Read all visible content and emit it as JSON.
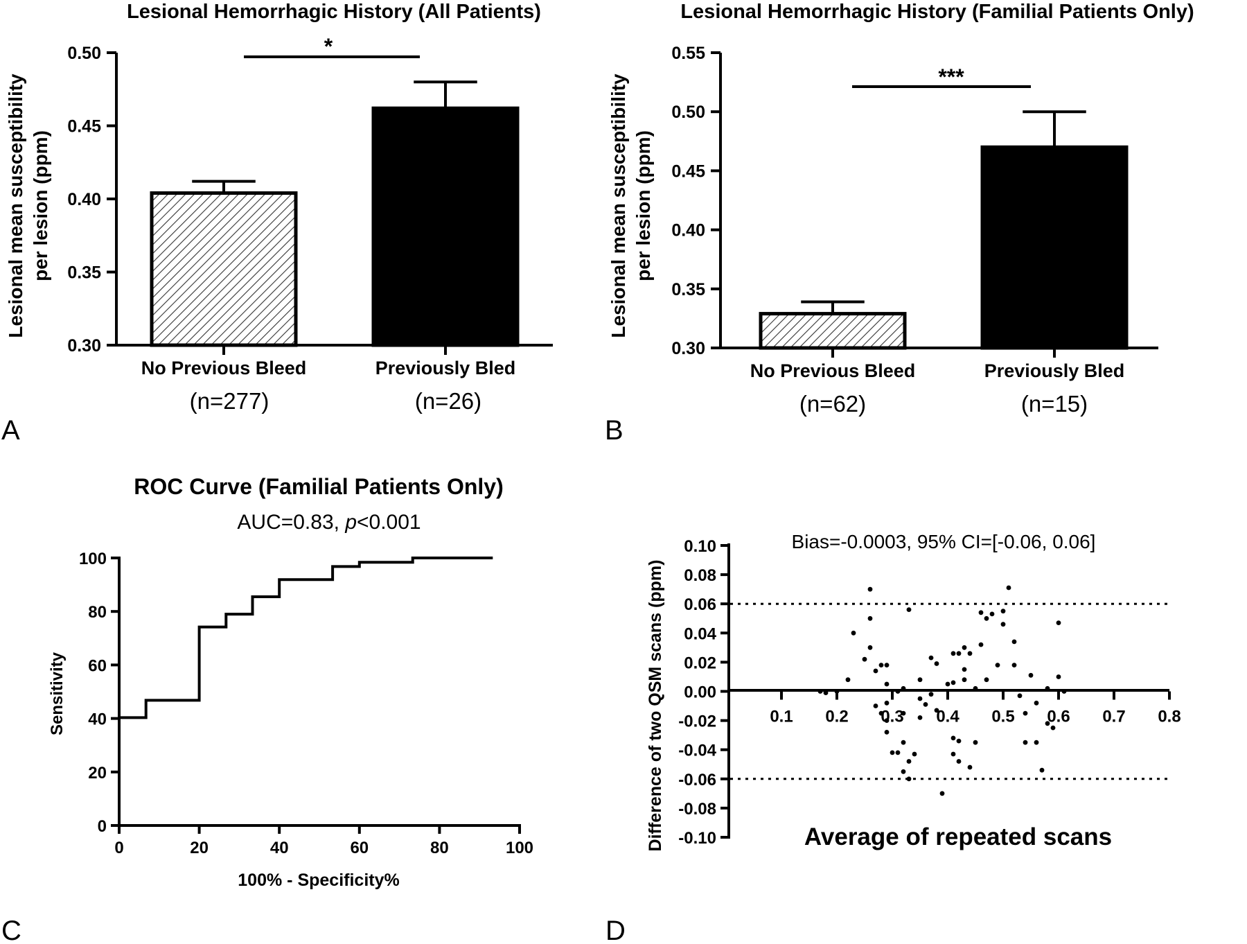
{
  "chart_data": [
    {
      "panel": "A",
      "type": "bar",
      "title": "Lesional Hemorrhagic History (All Patients)",
      "ylabel": [
        "Lesional mean susceptibility",
        "per lesion (ppm)"
      ],
      "categories": [
        "No Previous Bleed",
        "Previously Bled"
      ],
      "sublabels": [
        "(n=277)",
        "(n=26)"
      ],
      "values": [
        0.404,
        0.462
      ],
      "errors": [
        0.008,
        0.018
      ],
      "fills": [
        "hatched",
        "black"
      ],
      "ylim": [
        0.3,
        0.5
      ],
      "yticks": [
        "0.30",
        "0.35",
        "0.40",
        "0.45",
        "0.50"
      ],
      "significance": "*"
    },
    {
      "panel": "B",
      "type": "bar",
      "title": "Lesional Hemorrhagic History (Familial Patients Only)",
      "ylabel": [
        "Lesional mean susceptibility",
        "per lesion (ppm)"
      ],
      "categories": [
        "No Previous Bleed",
        "Previously Bled"
      ],
      "sublabels": [
        "(n=62)",
        "(n=15)"
      ],
      "values": [
        0.329,
        0.47
      ],
      "errors": [
        0.01,
        0.03
      ],
      "fills": [
        "hatched",
        "black"
      ],
      "ylim": [
        0.3,
        0.55
      ],
      "yticks": [
        "0.30",
        "0.35",
        "0.40",
        "0.45",
        "0.50",
        "0.55"
      ],
      "significance": "***"
    },
    {
      "panel": "C",
      "type": "line",
      "title": "ROC Curve (Familial Patients Only)",
      "subtitle_prefix": "AUC=0.83, ",
      "subtitle_italic": "p",
      "subtitle_suffix": "<0.001",
      "xlabel": "100% - Specificity%",
      "ylabel": "Sensitivity",
      "xlim": [
        0,
        100
      ],
      "ylim": [
        0,
        100
      ],
      "xticks": [
        "0",
        "20",
        "40",
        "60",
        "80",
        "100"
      ],
      "yticks": [
        "0",
        "20",
        "40",
        "60",
        "80",
        "100"
      ],
      "x": [
        0,
        0,
        6.7,
        6.7,
        20,
        20,
        26.7,
        26.7,
        33.3,
        33.3,
        40,
        40,
        53.3,
        53.3,
        60,
        60,
        73.3,
        73.3,
        93.3
      ],
      "y": [
        0,
        40.3,
        40.3,
        46.8,
        46.8,
        74.2,
        74.2,
        79,
        79,
        85.5,
        85.5,
        91.9,
        91.9,
        96.8,
        96.8,
        98.4,
        98.4,
        100,
        100
      ]
    },
    {
      "panel": "D",
      "type": "scatter",
      "title": "Bias=-0.0003, 95% CI=[-0.06, 0.06]",
      "xlabel": "Average of repeated scans",
      "ylabel": "Difference of two QSM scans (ppm)",
      "xlim": [
        0,
        0.8
      ],
      "ylim": [
        -0.1,
        0.1
      ],
      "xticks": [
        "0.1",
        "0.2",
        "0.3",
        "0.4",
        "0.5",
        "0.6",
        "0.7",
        "0.8"
      ],
      "yticks": [
        "0.10",
        "0.08",
        "0.06",
        "0.04",
        "0.02",
        "0.00",
        "-0.02",
        "-0.04",
        "-0.06",
        "-0.08",
        "-0.10"
      ],
      "limits": [
        0.06,
        -0.06
      ],
      "points": [
        [
          0.17,
          0.0
        ],
        [
          0.18,
          -0.001
        ],
        [
          0.2,
          0.0
        ],
        [
          0.22,
          0.008
        ],
        [
          0.23,
          0.04
        ],
        [
          0.25,
          0.022
        ],
        [
          0.26,
          0.07
        ],
        [
          0.26,
          0.05
        ],
        [
          0.26,
          0.03
        ],
        [
          0.27,
          0.014
        ],
        [
          0.27,
          -0.01
        ],
        [
          0.28,
          0.018
        ],
        [
          0.28,
          -0.015
        ],
        [
          0.29,
          0.018
        ],
        [
          0.29,
          0.005
        ],
        [
          0.29,
          -0.008
        ],
        [
          0.29,
          -0.02
        ],
        [
          0.29,
          -0.028
        ],
        [
          0.3,
          -0.042
        ],
        [
          0.31,
          -0.042
        ],
        [
          0.31,
          0.0
        ],
        [
          0.32,
          0.002
        ],
        [
          0.32,
          -0.015
        ],
        [
          0.32,
          -0.035
        ],
        [
          0.32,
          -0.055
        ],
        [
          0.33,
          0.056
        ],
        [
          0.33,
          -0.048
        ],
        [
          0.33,
          -0.06
        ],
        [
          0.34,
          -0.043
        ],
        [
          0.35,
          0.008
        ],
        [
          0.35,
          -0.005
        ],
        [
          0.35,
          -0.018
        ],
        [
          0.36,
          -0.009
        ],
        [
          0.37,
          0.023
        ],
        [
          0.37,
          -0.002
        ],
        [
          0.38,
          0.019
        ],
        [
          0.38,
          -0.013
        ],
        [
          0.39,
          -0.07
        ],
        [
          0.4,
          0.005
        ],
        [
          0.41,
          0.026
        ],
        [
          0.41,
          0.006
        ],
        [
          0.41,
          -0.032
        ],
        [
          0.41,
          -0.043
        ],
        [
          0.42,
          0.026
        ],
        [
          0.42,
          -0.034
        ],
        [
          0.42,
          -0.048
        ],
        [
          0.43,
          0.03
        ],
        [
          0.43,
          0.008
        ],
        [
          0.43,
          0.015
        ],
        [
          0.44,
          0.026
        ],
        [
          0.44,
          -0.052
        ],
        [
          0.45,
          0.002
        ],
        [
          0.45,
          -0.035
        ],
        [
          0.46,
          0.054
        ],
        [
          0.46,
          0.032
        ],
        [
          0.47,
          0.008
        ],
        [
          0.47,
          0.05
        ],
        [
          0.48,
          0.053
        ],
        [
          0.49,
          0.018
        ],
        [
          0.5,
          0.055
        ],
        [
          0.5,
          0.046
        ],
        [
          0.51,
          0.071
        ],
        [
          0.52,
          0.034
        ],
        [
          0.52,
          0.018
        ],
        [
          0.53,
          -0.003
        ],
        [
          0.54,
          -0.015
        ],
        [
          0.54,
          -0.035
        ],
        [
          0.55,
          0.011
        ],
        [
          0.56,
          -0.035
        ],
        [
          0.56,
          -0.008
        ],
        [
          0.57,
          -0.054
        ],
        [
          0.58,
          0.002
        ],
        [
          0.58,
          -0.022
        ],
        [
          0.59,
          -0.025
        ],
        [
          0.6,
          0.047
        ],
        [
          0.6,
          0.01
        ],
        [
          0.61,
          0.0
        ]
      ]
    }
  ],
  "panel_labels": [
    "A",
    "B",
    "C",
    "D"
  ]
}
